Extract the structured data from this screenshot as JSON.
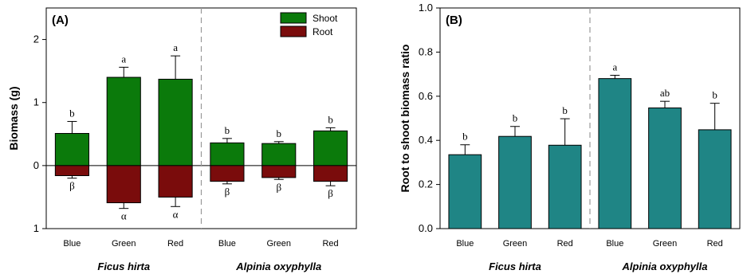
{
  "chart_data": [
    {
      "type": "bar",
      "panel_label": "(A)",
      "ylabel": "Biomass (g)",
      "ylim": [
        -1,
        2.5
      ],
      "y_ticks": [
        -1,
        0,
        1,
        2
      ],
      "y_tick_labels": [
        "1",
        "0",
        "1",
        "2"
      ],
      "categories": [
        "Blue",
        "Green",
        "Red",
        "Blue",
        "Green",
        "Red"
      ],
      "groups": [
        {
          "name": "Ficus hirta",
          "categories": [
            "Blue",
            "Green",
            "Red"
          ]
        },
        {
          "name": "Alpinia oxyphylla",
          "categories": [
            "Blue",
            "Green",
            "Red"
          ]
        }
      ],
      "legend": {
        "position": "top-right"
      },
      "series": [
        {
          "name": "Shoot",
          "color": "#0b7a0b",
          "values": [
            0.51,
            1.4,
            1.37,
            0.36,
            0.35,
            0.55
          ],
          "errors": [
            0.19,
            0.16,
            0.37,
            0.07,
            0.03,
            0.05
          ],
          "letters": [
            "b",
            "a",
            "a",
            "b",
            "b",
            "b"
          ]
        },
        {
          "name": "Root",
          "color": "#7a0c0c",
          "values": [
            -0.16,
            -0.59,
            -0.5,
            -0.25,
            -0.19,
            -0.25
          ],
          "errors": [
            0.04,
            0.09,
            0.15,
            0.04,
            0.03,
            0.07
          ],
          "letters": [
            "β",
            "α",
            "α",
            "β",
            "β",
            "β"
          ]
        }
      ],
      "group_divider": true
    },
    {
      "type": "bar",
      "panel_label": "(B)",
      "ylabel": "Root to shoot biomass ratio",
      "ylim": [
        0,
        1.0
      ],
      "y_ticks": [
        0,
        0.2,
        0.4,
        0.6,
        0.8,
        1.0
      ],
      "y_tick_labels": [
        "0.0",
        "0.2",
        "0.4",
        "0.6",
        "0.8",
        "1.0"
      ],
      "categories": [
        "Blue",
        "Green",
        "Red",
        "Blue",
        "Green",
        "Red"
      ],
      "groups": [
        {
          "name": "Ficus hirta",
          "categories": [
            "Blue",
            "Green",
            "Red"
          ]
        },
        {
          "name": "Alpinia oxyphylla",
          "categories": [
            "Blue",
            "Green",
            "Red"
          ]
        }
      ],
      "series": [
        {
          "color": "#1f8585",
          "values": [
            0.335,
            0.418,
            0.378,
            0.68,
            0.547,
            0.448
          ],
          "errors": [
            0.045,
            0.045,
            0.12,
            0.015,
            0.03,
            0.12
          ],
          "letters": [
            "b",
            "b",
            "b",
            "a",
            "ab",
            "b"
          ]
        }
      ],
      "group_divider": true
    }
  ]
}
